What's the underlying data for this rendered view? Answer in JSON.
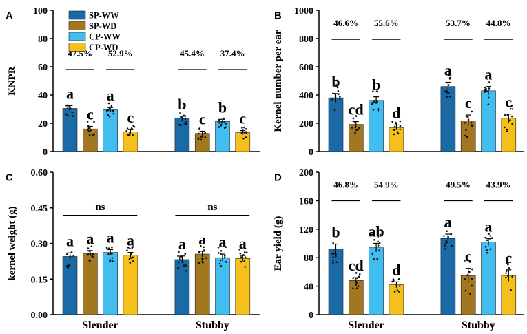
{
  "colors": {
    "SP-WW": "#1a6aa8",
    "SP-WD": "#a3771f",
    "CP-WW": "#41bdf0",
    "CP-WD": "#f5c01c"
  },
  "legend": [
    "SP-WW",
    "SP-WD",
    "CP-WW",
    "CP-WD"
  ],
  "chart_data": [
    {
      "type": "bar",
      "panel": "A",
      "ylabel": "KNPR",
      "ylim": [
        0,
        100
      ],
      "yticks": [
        "0",
        "20",
        "40",
        "60",
        "80",
        "100"
      ],
      "categories": [
        "Slender",
        "Stubby"
      ],
      "series": [
        {
          "name": "SP-WW",
          "values": [
            30.5,
            23.5
          ],
          "errors": [
            2.0,
            1.5
          ]
        },
        {
          "name": "SP-WD",
          "values": [
            16.0,
            12.8
          ],
          "errors": [
            1.8,
            1.6
          ]
        },
        {
          "name": "CP-WW",
          "values": [
            29.5,
            21.3
          ],
          "errors": [
            1.6,
            1.5
          ]
        },
        {
          "name": "CP-WD",
          "values": [
            14.0,
            13.4
          ],
          "errors": [
            1.5,
            1.4
          ]
        }
      ],
      "letters": [
        [
          "a",
          "c",
          "a",
          "c"
        ],
        [
          "b",
          "c",
          "b",
          "c"
        ]
      ],
      "pairs": [
        [
          "47.5%",
          "52.9%"
        ],
        [
          "45.4%",
          "37.4%"
        ]
      ],
      "pair_value": 58
    },
    {
      "type": "bar",
      "panel": "B",
      "ylabel": "Kernel number per ear",
      "ylim": [
        0,
        1000
      ],
      "yticks": [
        "0",
        "200",
        "400",
        "600",
        "800",
        "1000"
      ],
      "categories": [
        "Slender",
        "Stubby"
      ],
      "series": [
        {
          "name": "SP-WW",
          "values": [
            380,
            460
          ],
          "errors": [
            30,
            30
          ]
        },
        {
          "name": "SP-WD",
          "values": [
            192,
            218
          ],
          "errors": [
            20,
            40
          ]
        },
        {
          "name": "CP-WW",
          "values": [
            362,
            430
          ],
          "errors": [
            25,
            30
          ]
        },
        {
          "name": "CP-WD",
          "values": [
            170,
            235
          ],
          "errors": [
            18,
            30
          ]
        }
      ],
      "letters": [
        [
          "b",
          "cd",
          "b",
          "d"
        ],
        [
          "a",
          "c",
          "a",
          "c"
        ]
      ],
      "pairs": [
        [
          "46.6%",
          "55.6%"
        ],
        [
          "53.7%",
          "44.8%"
        ]
      ],
      "pair_value": 795
    },
    {
      "type": "bar",
      "panel": "C",
      "ylabel": "kernel weight (g)",
      "ylim": [
        0,
        0.6
      ],
      "yticks": [
        "0.00",
        "0.15",
        "0.30",
        "0.45",
        "0.60"
      ],
      "categories": [
        "Slender",
        "Stubby"
      ],
      "series": [
        {
          "name": "SP-WW",
          "values": [
            0.245,
            0.232
          ],
          "errors": [
            0.015,
            0.015
          ]
        },
        {
          "name": "SP-WD",
          "values": [
            0.258,
            0.255
          ],
          "errors": [
            0.012,
            0.012
          ]
        },
        {
          "name": "CP-WW",
          "values": [
            0.262,
            0.24
          ],
          "errors": [
            0.012,
            0.015
          ]
        },
        {
          "name": "CP-WD",
          "values": [
            0.25,
            0.237
          ],
          "errors": [
            0.012,
            0.012
          ]
        }
      ],
      "letters": [
        [
          "a",
          "a",
          "a",
          "a"
        ],
        [
          "a",
          "a",
          "a",
          "a"
        ]
      ],
      "group_label": [
        "ns",
        "ns"
      ],
      "group_value": 0.418
    },
    {
      "type": "bar",
      "panel": "D",
      "ylabel": "Ear yield (g)",
      "ylim": [
        0,
        200
      ],
      "yticks": [
        "0",
        "40",
        "80",
        "120",
        "160",
        "200"
      ],
      "categories": [
        "Slender",
        "Stubby"
      ],
      "series": [
        {
          "name": "SP-WW",
          "values": [
            92,
            107
          ],
          "errors": [
            7,
            6
          ]
        },
        {
          "name": "SP-WD",
          "values": [
            48,
            55
          ],
          "errors": [
            4,
            10
          ]
        },
        {
          "name": "CP-WW",
          "values": [
            94,
            102
          ],
          "errors": [
            6,
            5
          ]
        },
        {
          "name": "CP-WD",
          "values": [
            42,
            55
          ],
          "errors": [
            4,
            8
          ]
        }
      ],
      "letters": [
        [
          "b",
          "cd",
          "ab",
          "d"
        ],
        [
          "a",
          "c",
          "a",
          "c"
        ]
      ],
      "pairs": [
        [
          "46.8%",
          "54.9%"
        ],
        [
          "49.5%",
          "43.9%"
        ]
      ],
      "pair_value": 160
    }
  ]
}
